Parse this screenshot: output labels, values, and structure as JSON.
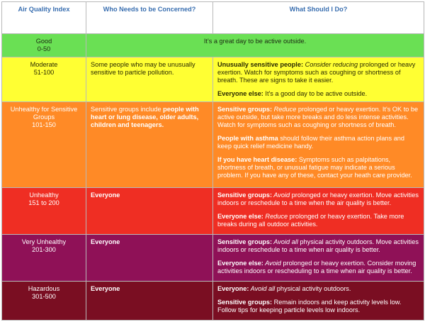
{
  "headers": {
    "col1": "Air Quality Index",
    "col2": "Who Needs to be Concerned?",
    "col3": "What Should I Do?"
  },
  "rows": {
    "good": {
      "category": "Good",
      "range": "0-50",
      "message": "It's a great day to be active outside."
    },
    "moderate": {
      "category": "Moderate",
      "range": "51-100",
      "who": "Some people who may be unusually sensitive to particle pollution.",
      "p1_lead": "Unusually sensitive people:",
      "p1_em": " Consider reducing",
      "p1_rest": " prolonged or heavy exertion. Watch for symptoms such as coughing or shortness of breath. These are signs to take it easier.",
      "p2_lead": "Everyone else:",
      "p2_rest": " It's a good day to be active outside."
    },
    "usg": {
      "category": "Unhealthy for Sensitive Groups",
      "range": "101-150",
      "who_plain": "Sensitive groups include ",
      "who_bold": "people with heart or lung disease, older adults, children and teenagers.",
      "p1_lead": "Sensitive groups:",
      "p1_em": " Reduce",
      "p1_rest": " prolonged or heavy exertion. It's OK to be active outside, but take more breaks and do less intense activities. Watch for symptoms such as coughing or shortness of breath.",
      "p2_lead": "People with asthma",
      "p2_rest": " should follow their asthma action plans and keep quick relief medicine handy.",
      "p3_lead": "If you have heart disease:",
      "p3_rest": " Symptoms such as palpitations, shortness of breath, or unusual fatigue may indicate a serious problem. If you have any of these, contact your heath care provider."
    },
    "unhealthy": {
      "category": "Unhealthy",
      "range": "151 to 200",
      "who": "Everyone",
      "p1_lead": "Sensitive groups:",
      "p1_em": " Avoid",
      "p1_rest": " prolonged or heavy exertion. Move activities indoors or reschedule to a time when the air quality is better.",
      "p2_lead": "Everyone else:",
      "p2_em": " Reduce",
      "p2_rest": " prolonged or heavy exertion. Take more breaks during all outdoor activities."
    },
    "vunhealthy": {
      "category": "Very Unhealthy",
      "range": "201-300",
      "who": "Everyone",
      "p1_lead": "Sensitive groups:",
      "p1_em": " Avoid all",
      "p1_rest": " physical activity outdoors. Move activities indoors or reschedule to a time when air quality is better.",
      "p2_lead": "Everyone else:",
      "p2_em": " Avoid",
      "p2_rest": " prolonged or heavy exertion. Consider moving activities indoors or rescheduling to a time when air quality is better."
    },
    "hazardous": {
      "category": "Hazardous",
      "range": "301-500",
      "who": "Everyone",
      "p1_lead": "Everyone:",
      "p1_em": " Avoid all",
      "p1_rest": " physical activity outdoors.",
      "p2_lead": "Sensitive groups:",
      "p2_rest": " Remain indoors and keep activity levels low. Follow tips for keeping particle levels low indoors."
    }
  },
  "colors": {
    "header_text": "#3a6fb0",
    "good": "#6ae054",
    "moderate": "#ffff33",
    "usg": "#ff8a26",
    "unhealthy": "#ef2e23",
    "very_unhealthy": "#8f1157",
    "hazardous": "#7a0e22"
  }
}
